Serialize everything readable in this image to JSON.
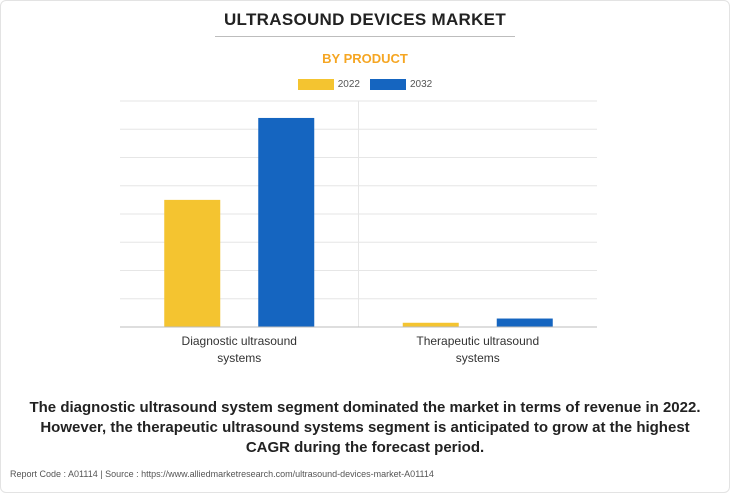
{
  "header": {
    "title": "ULTRASOUND DEVICES MARKET",
    "subtitle": "BY PRODUCT"
  },
  "legend": [
    {
      "label": "2022",
      "color": "#f4c430"
    },
    {
      "label": "2032",
      "color": "#1565c0"
    }
  ],
  "chart_data": {
    "type": "bar",
    "categories": [
      [
        "Diagnostic ultrasound",
        "systems"
      ],
      [
        "Therapeutic ultrasound",
        "systems"
      ]
    ],
    "series": [
      {
        "name": "2022",
        "color": "#f4c430",
        "values": [
          4.5,
          0.15
        ]
      },
      {
        "name": "2032",
        "color": "#1565c0",
        "values": [
          7.4,
          0.3
        ]
      }
    ],
    "ylim": [
      0,
      8
    ],
    "grid": true,
    "legend_position": "top-center"
  },
  "caption": "The diagnostic ultrasound system segment dominated the market in terms of revenue in 2022. However, the therapeutic ultrasound systems segment is anticipated to grow at the highest CAGR during the forecast period.",
  "footer": "Report Code : A01114  |  Source : https://www.alliedmarketresearch.com/ultrasound-devices-market-A01114"
}
